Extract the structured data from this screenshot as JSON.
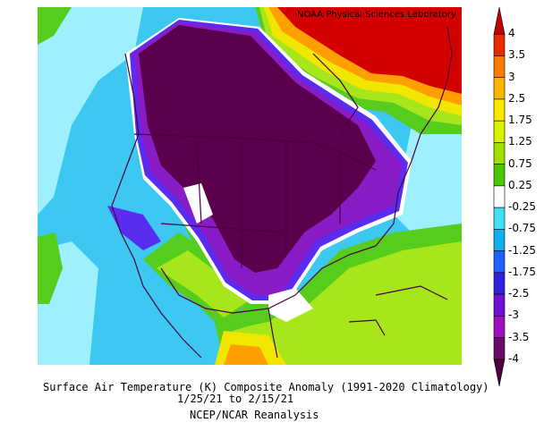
{
  "header": {
    "credit": "NOAA Physical Sciences Laboratory"
  },
  "footer": {
    "title": "Surface Air Temperature (K) Composite Anomaly (1991-2020 Climatology)",
    "dates": "1/25/21  to 2/15/21",
    "source": "NCEP/NCAR Reanalysis"
  },
  "colorbar": {
    "labels": [
      "4",
      "3.5",
      "3",
      "2.5",
      "1.75",
      "1.25",
      "0.75",
      "0.25",
      "-0.25",
      "-0.75",
      "-1.25",
      "-1.75",
      "-2.5",
      "-3",
      "-3.5",
      "-4"
    ],
    "colors": [
      "#c00000",
      "#e82a00",
      "#ff7a00",
      "#ffb400",
      "#ffe600",
      "#d8f200",
      "#a0e000",
      "#4cc800",
      "#ffffff",
      "#40e0f0",
      "#10b0f0",
      "#2060ff",
      "#3020e0",
      "#7010d0",
      "#a010c0",
      "#6a0a6a",
      "#4a0040"
    ]
  },
  "map": {
    "colors": {
      "ocean_blue": "#3cc8f0",
      "light_cyan": "#9ff0ff",
      "deep_purple": "#5a004c",
      "purple": "#8a1cc8",
      "violet": "#5a2cf0",
      "green": "#56cc1c",
      "lime": "#a8e61c",
      "yellow": "#f0e600",
      "orange": "#ffa000",
      "red": "#d40000"
    }
  }
}
